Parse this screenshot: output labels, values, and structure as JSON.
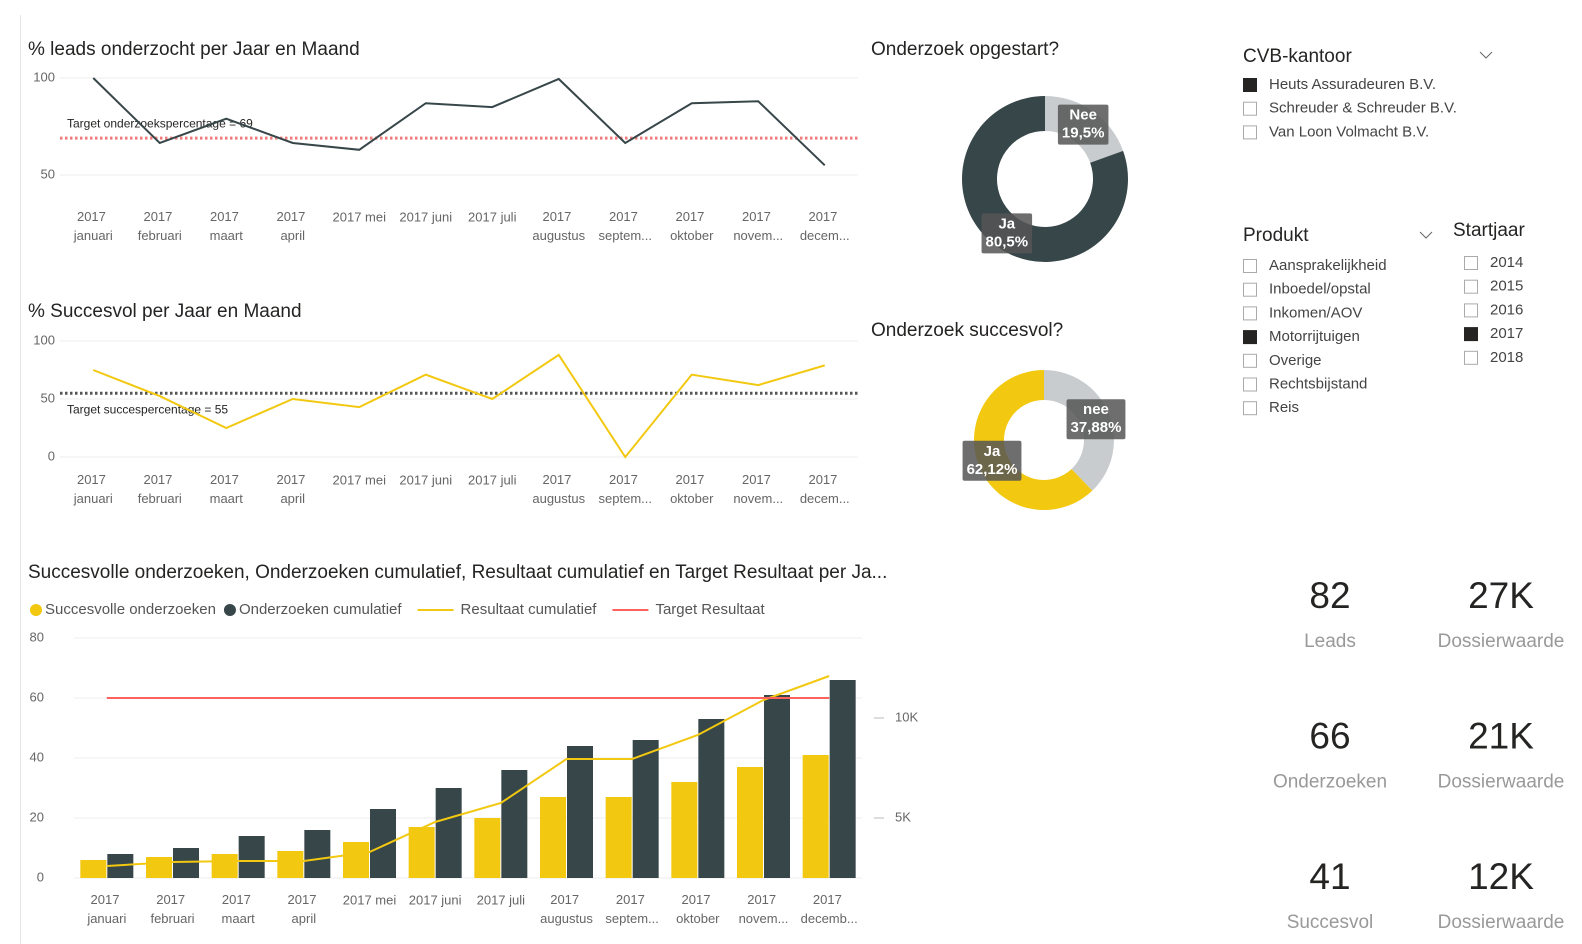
{
  "chart_data": [
    {
      "type": "line",
      "title": "% leads onderzocht per Jaar en Maand",
      "categories": [
        "2017 januari",
        "2017 februari",
        "2017 maart",
        "2017 april",
        "2017 mei",
        "2017 juni",
        "2017 juli",
        "2017 augustus",
        "2017 septem...",
        "2017 oktober",
        "2017 novem...",
        "2017 decem..."
      ],
      "values": [
        100,
        66.5,
        79,
        66.5,
        63,
        87,
        85,
        99.5,
        66.5,
        87,
        88,
        55
      ],
      "color": "#374649",
      "ylim": [
        50,
        100
      ],
      "yticks": [
        50,
        100
      ],
      "grid": true,
      "target": {
        "value": 69,
        "label": "Target onderzoekspercentage = 69",
        "color": "#f07b7b"
      }
    },
    {
      "type": "line",
      "title": "% Succesvol per Jaar en Maand",
      "categories": [
        "2017 januari",
        "2017 februari",
        "2017 maart",
        "2017 april",
        "2017 mei",
        "2017 juni",
        "2017 juli",
        "2017 augustus",
        "2017 septem...",
        "2017 oktober",
        "2017 novem...",
        "2017 decem..."
      ],
      "values": [
        75,
        52.5,
        25,
        50,
        43,
        71,
        50,
        88,
        0,
        71,
        62,
        79
      ],
      "color": "#f2c811",
      "ylim": [
        0,
        100
      ],
      "yticks": [
        0,
        50,
        100
      ],
      "grid": true,
      "target": {
        "value": 55,
        "label": "Target succespercentage = 55",
        "color": "#555555"
      }
    },
    {
      "type": "combo",
      "title": "Succesvolle onderzoeken, Onderzoeken cumulatief, Resultaat cumulatief en Target Resultaat per Ja...",
      "categories": [
        "2017 januari",
        "2017 februari",
        "2017 maart",
        "2017 april",
        "2017 mei",
        "2017 juni",
        "2017 juli",
        "2017 augustus",
        "2017 septem...",
        "2017 oktober",
        "2017 novem...",
        "2017 decemb..."
      ],
      "series": [
        {
          "name": "Succesvolle onderzoeken",
          "kind": "bar",
          "color": "#f2c811",
          "values": [
            6,
            7,
            8,
            9,
            12,
            17,
            20,
            27,
            27,
            32,
            37,
            41
          ]
        },
        {
          "name": "Onderzoeken cumulatief",
          "kind": "bar",
          "color": "#374649",
          "values": [
            8,
            10,
            14,
            16,
            23,
            30,
            36,
            44,
            46,
            53,
            61,
            66
          ]
        },
        {
          "name": "Resultaat cumulatief",
          "kind": "line",
          "axis": "y2",
          "color": "#f2c811",
          "values": [
            2600,
            2800,
            2850,
            2850,
            3300,
            4800,
            5750,
            7950,
            7950,
            9150,
            10900,
            12100
          ]
        },
        {
          "name": "Target Resultaat",
          "kind": "line",
          "axis": "y2",
          "color": "#fd625e",
          "values": [
            11000,
            11000,
            11000,
            11000,
            11000,
            11000,
            11000,
            11000,
            11000,
            11000,
            11000,
            11000
          ]
        }
      ],
      "ylim": [
        0,
        80
      ],
      "yticks": [
        0,
        20,
        40,
        60,
        80
      ],
      "y2lim": [
        2000,
        14000
      ],
      "y2ticks": [
        {
          "value": 5000,
          "label": "5K"
        },
        {
          "value": 10000,
          "label": "10K"
        }
      ],
      "grid": true
    },
    {
      "type": "pie",
      "title": "Onderzoek opgestart?",
      "categories": [
        "Nee",
        "Ja"
      ],
      "values": [
        19.5,
        80.5
      ],
      "value_labels": [
        "19,5%",
        "80,5%"
      ],
      "colors": [
        "#c8ccce",
        "#374649"
      ]
    },
    {
      "type": "pie",
      "title": "Onderzoek succesvol?",
      "categories": [
        "nee",
        "Ja"
      ],
      "values": [
        37.88,
        62.12
      ],
      "value_labels": [
        "37,88%",
        "62,12%"
      ],
      "colors": [
        "#c8ccce",
        "#f2c811"
      ]
    }
  ],
  "slicers": [
    {
      "title": "CVB-kantoor",
      "items": [
        {
          "label": "Heuts Assuradeuren B.V.",
          "selected": true
        },
        {
          "label": "Schreuder & Schreuder B.V.",
          "selected": false
        },
        {
          "label": "Van Loon Volmacht B.V.",
          "selected": false
        }
      ]
    },
    {
      "title": "Produkt",
      "items": [
        {
          "label": "Aansprakelijkheid",
          "selected": false
        },
        {
          "label": "Inboedel/opstal",
          "selected": false
        },
        {
          "label": "Inkomen/AOV",
          "selected": false
        },
        {
          "label": "Motorrijtuigen",
          "selected": true
        },
        {
          "label": "Overige",
          "selected": false
        },
        {
          "label": "Rechtsbijstand",
          "selected": false
        },
        {
          "label": "Reis",
          "selected": false
        }
      ]
    },
    {
      "title": "Startjaar",
      "items": [
        {
          "label": "2014",
          "selected": false
        },
        {
          "label": "2015",
          "selected": false
        },
        {
          "label": "2016",
          "selected": false
        },
        {
          "label": "2017",
          "selected": true
        },
        {
          "label": "2018",
          "selected": false
        }
      ]
    }
  ],
  "cards": [
    {
      "value": "82",
      "label": "Leads"
    },
    {
      "value": "27K",
      "label": "Dossierwaarde"
    },
    {
      "value": "66",
      "label": "Onderzoeken"
    },
    {
      "value": "21K",
      "label": "Dossierwaarde"
    },
    {
      "value": "41",
      "label": "Succesvol"
    },
    {
      "value": "12K",
      "label": "Dossierwaarde"
    }
  ]
}
